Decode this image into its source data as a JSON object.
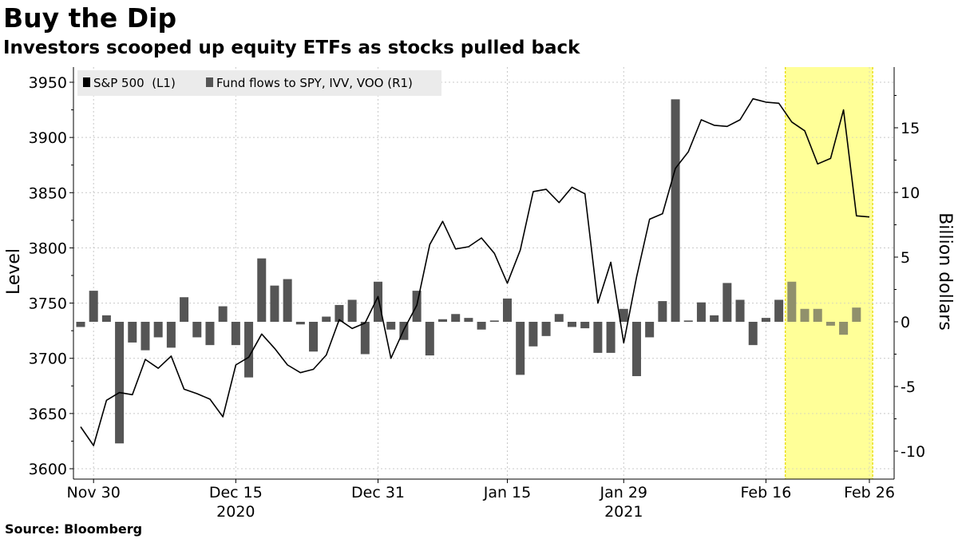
{
  "title": "Buy the Dip",
  "subtitle": "Investors scooped up equity ETFs as stocks pulled back",
  "source": "Source:  Bloomberg",
  "chart_data": {
    "type": "bar+line",
    "dates": [
      "2020-11-27",
      "2020-11-30",
      "2020-12-01",
      "2020-12-02",
      "2020-12-03",
      "2020-12-04",
      "2020-12-07",
      "2020-12-08",
      "2020-12-09",
      "2020-12-10",
      "2020-12-11",
      "2020-12-14",
      "2020-12-15",
      "2020-12-16",
      "2020-12-17",
      "2020-12-18",
      "2020-12-21",
      "2020-12-22",
      "2020-12-23",
      "2020-12-24",
      "2020-12-28",
      "2020-12-29",
      "2020-12-30",
      "2020-12-31",
      "2021-01-04",
      "2021-01-05",
      "2021-01-06",
      "2021-01-07",
      "2021-01-08",
      "2021-01-11",
      "2021-01-12",
      "2021-01-13",
      "2021-01-14",
      "2021-01-15",
      "2021-01-19",
      "2021-01-20",
      "2021-01-21",
      "2021-01-22",
      "2021-01-25",
      "2021-01-26",
      "2021-01-27",
      "2021-01-28",
      "2021-01-29",
      "2021-02-01",
      "2021-02-02",
      "2021-02-03",
      "2021-02-04",
      "2021-02-05",
      "2021-02-08",
      "2021-02-09",
      "2021-02-10",
      "2021-02-11",
      "2021-02-12",
      "2021-02-16",
      "2021-02-17",
      "2021-02-18",
      "2021-02-19",
      "2021-02-22",
      "2021-02-23",
      "2021-02-24",
      "2021-02-25",
      "2021-02-26"
    ],
    "series": [
      {
        "name": "S&P 500  (L1)",
        "axis": "left",
        "kind": "line",
        "color": "#000000",
        "values": [
          3638,
          3621,
          3662,
          3669,
          3667,
          3699,
          3691,
          3702,
          3672,
          3668,
          3663,
          3647,
          3694,
          3701,
          3722,
          3709,
          3694,
          3687,
          3690,
          3703,
          3735,
          3727,
          3732,
          3756,
          3700,
          3726,
          3748,
          3803,
          3824,
          3799,
          3801,
          3809,
          3795,
          3768,
          3798,
          3851,
          3853,
          3841,
          3855,
          3849,
          3750,
          3787,
          3714,
          3774,
          3826,
          3831,
          3872,
          3887,
          3916,
          3911,
          3910,
          3916,
          3935,
          3932,
          3931,
          3914,
          3906,
          3876,
          3881,
          3925,
          3829,
          3828
        ]
      },
      {
        "name": "Fund flows to SPY, IVV, VOO (R1)",
        "axis": "right",
        "kind": "bar",
        "color": "#555555",
        "values": [
          -0.4,
          2.4,
          0.5,
          -9.4,
          -1.6,
          -2.2,
          -1.2,
          -2.0,
          1.9,
          -1.2,
          -1.8,
          1.2,
          -1.8,
          -4.3,
          4.9,
          2.8,
          3.3,
          -0.2,
          -2.3,
          0.4,
          1.3,
          1.7,
          -2.5,
          3.1,
          -0.6,
          -1.4,
          2.4,
          -2.6,
          0.2,
          0.6,
          0.3,
          -0.6,
          0.1,
          1.8,
          -4.1,
          -1.9,
          -1.1,
          0.6,
          -0.4,
          -0.5,
          -2.4,
          -2.4,
          1.0,
          -4.2,
          -1.2,
          1.6,
          17.2,
          0.1,
          1.5,
          0.5,
          3.0,
          1.7,
          -1.8,
          0.3,
          1.7,
          3.1,
          1.0,
          1.0,
          -0.3,
          -1.0,
          1.1,
          null
        ]
      }
    ],
    "left_axis": {
      "title": "Level",
      "min": 3600,
      "max": 3950,
      "ticks": [
        3600,
        3650,
        3700,
        3750,
        3800,
        3850,
        3900,
        3950
      ]
    },
    "right_axis": {
      "title": "Billion dollars",
      "min": -10,
      "max": 15,
      "ticks": [
        -10,
        -5,
        0,
        5,
        10,
        15
      ]
    },
    "x_ticks": [
      {
        "date": "2020-11-30",
        "label": "Nov 30"
      },
      {
        "date": "2020-12-15",
        "label": "Dec 15"
      },
      {
        "date": "2020-12-31",
        "label": "Dec 31"
      },
      {
        "date": "2021-01-15",
        "label": "Jan 15"
      },
      {
        "date": "2021-01-29",
        "label": "Jan 29"
      },
      {
        "date": "2021-02-16",
        "label": "Feb 16"
      },
      {
        "date": "2021-02-26",
        "label": "Feb 26"
      }
    ],
    "year_labels": [
      {
        "date": "2020-12-15",
        "label": "2020"
      },
      {
        "date": "2021-01-29",
        "label": "2021"
      }
    ],
    "highlight": {
      "start": "2021-02-18",
      "end": "2021-02-26",
      "color": "#ffff99"
    },
    "grid": true,
    "legend": "top-left"
  }
}
